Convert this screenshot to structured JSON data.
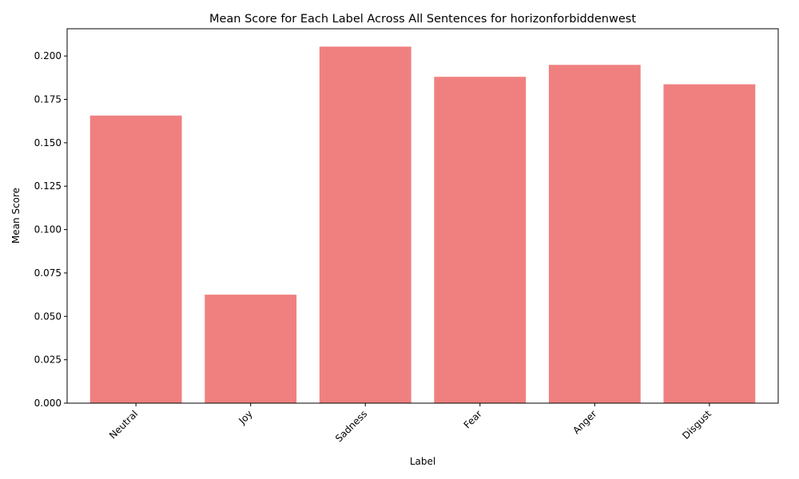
{
  "chart_data": {
    "type": "bar",
    "title": "Mean Score for Each Label Across All Sentences for horizonforbiddenwest",
    "xlabel": "Label",
    "ylabel": "Mean Score",
    "categories": [
      "Neutral",
      "Joy",
      "Sadness",
      "Fear",
      "Anger",
      "Disgust"
    ],
    "values": [
      0.1657,
      0.0625,
      0.2054,
      0.188,
      0.1949,
      0.1837
    ],
    "ylim": [
      0,
      0.2157
    ],
    "yticks": [
      "0.000",
      "0.025",
      "0.050",
      "0.075",
      "0.100",
      "0.125",
      "0.150",
      "0.175",
      "0.200"
    ],
    "grid": false,
    "legend": "none",
    "bar_color": "#f08080",
    "axis_color": "#000000"
  }
}
